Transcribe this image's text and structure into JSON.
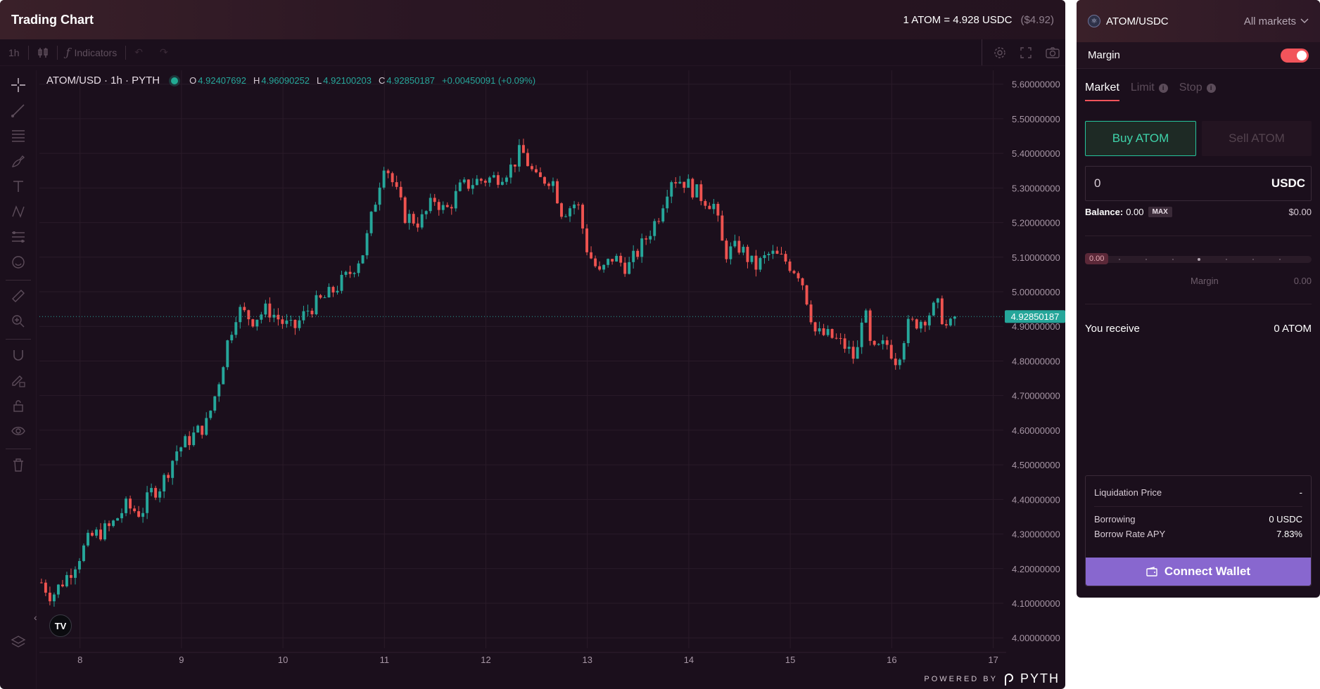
{
  "chart_header": {
    "title": "Trading Chart",
    "rate_text": "1 ATOM = 4.928 USDC",
    "usd_text": "($4.92)"
  },
  "toolbar": {
    "interval": "1h",
    "indicators_label": "Indicators"
  },
  "legend": {
    "symbol": "ATOM/USD · 1h · PYTH",
    "open_key": "O",
    "open": "4.92407692",
    "high_key": "H",
    "high": "4.96090252",
    "low_key": "L",
    "low": "4.92100203",
    "close_key": "C",
    "close": "4.92850187",
    "change": "+0.00450091 (+0.09%)"
  },
  "chart_data": {
    "type": "candlestick",
    "title": "ATOM/USD · 1h · PYTH",
    "xlabel": "",
    "ylabel": "",
    "x_ticks": [
      "8",
      "9",
      "10",
      "11",
      "12",
      "13",
      "14",
      "15",
      "16",
      "17"
    ],
    "y_ticks": [
      "5.60000000",
      "5.50000000",
      "5.40000000",
      "5.30000000",
      "5.20000000",
      "5.10000000",
      "5.00000000",
      "4.90000000",
      "4.80000000",
      "4.70000000",
      "4.60000000",
      "4.50000000",
      "4.40000000",
      "4.30000000",
      "4.20000000",
      "4.10000000",
      "4.00000000"
    ],
    "ylim": [
      3.97,
      5.64
    ],
    "xlim": [
      7.6,
      17.1
    ],
    "last_price": 4.9285,
    "last_price_label": "4.92850187",
    "up_color": "#26a69a",
    "down_color": "#ef5350",
    "close_path": [
      [
        7.62,
        4.16
      ],
      [
        7.72,
        4.12
      ],
      [
        7.9,
        4.19
      ],
      [
        8.1,
        4.29
      ],
      [
        8.3,
        4.32
      ],
      [
        8.45,
        4.38
      ],
      [
        8.6,
        4.36
      ],
      [
        8.7,
        4.42
      ],
      [
        8.8,
        4.44
      ],
      [
        8.95,
        4.54
      ],
      [
        9.1,
        4.58
      ],
      [
        9.25,
        4.62
      ],
      [
        9.35,
        4.72
      ],
      [
        9.45,
        4.85
      ],
      [
        9.55,
        4.95
      ],
      [
        9.7,
        4.92
      ],
      [
        9.85,
        4.95
      ],
      [
        10.0,
        4.91
      ],
      [
        10.1,
        4.89
      ],
      [
        10.25,
        4.95
      ],
      [
        10.45,
        4.99
      ],
      [
        10.65,
        5.05
      ],
      [
        10.8,
        5.12
      ],
      [
        10.9,
        5.25
      ],
      [
        11.0,
        5.38
      ],
      [
        11.1,
        5.3
      ],
      [
        11.2,
        5.22
      ],
      [
        11.35,
        5.2
      ],
      [
        11.5,
        5.27
      ],
      [
        11.6,
        5.23
      ],
      [
        11.75,
        5.3
      ],
      [
        11.9,
        5.32
      ],
      [
        12.1,
        5.33
      ],
      [
        12.25,
        5.36
      ],
      [
        12.35,
        5.41
      ],
      [
        12.5,
        5.32
      ],
      [
        12.65,
        5.33
      ],
      [
        12.75,
        5.23
      ],
      [
        12.9,
        5.26
      ],
      [
        13.0,
        5.12
      ],
      [
        13.12,
        5.05
      ],
      [
        13.25,
        5.1
      ],
      [
        13.4,
        5.07
      ],
      [
        13.55,
        5.14
      ],
      [
        13.7,
        5.22
      ],
      [
        13.82,
        5.33
      ],
      [
        13.95,
        5.32
      ],
      [
        14.1,
        5.28
      ],
      [
        14.25,
        5.25
      ],
      [
        14.35,
        5.11
      ],
      [
        14.5,
        5.13
      ],
      [
        14.65,
        5.07
      ],
      [
        14.8,
        5.11
      ],
      [
        14.95,
        5.09
      ],
      [
        15.1,
        5.05
      ],
      [
        15.25,
        4.88
      ],
      [
        15.4,
        4.87
      ],
      [
        15.55,
        4.84
      ],
      [
        15.65,
        4.8
      ],
      [
        15.72,
        4.97
      ],
      [
        15.8,
        4.82
      ],
      [
        15.95,
        4.85
      ],
      [
        16.05,
        4.8
      ],
      [
        16.15,
        4.9
      ],
      [
        16.3,
        4.92
      ],
      [
        16.45,
        4.96
      ],
      [
        16.55,
        4.89
      ],
      [
        16.65,
        4.9285
      ]
    ]
  },
  "pyth_badge": {
    "powered": "POWERED BY",
    "name": "PYTH"
  },
  "trade": {
    "market": "ATOM/USDC",
    "all_markets": "All markets",
    "margin_label": "Margin",
    "tabs": {
      "market": "Market",
      "limit": "Limit",
      "stop": "Stop"
    },
    "buy_label": "Buy ATOM",
    "sell_label": "Sell ATOM",
    "amount_value": "0",
    "amount_unit": "USDC",
    "balance_label": "Balance:",
    "balance_value": "0.00",
    "max_label": "MAX",
    "balance_usd": "$0.00",
    "slider_value": "0.00",
    "slider_label": "Margin",
    "slider_right": "0.00",
    "receive_label": "You receive",
    "receive_value": "0 ATOM",
    "liq_label": "Liquidation Price",
    "liq_value": "-",
    "borrow_label": "Borrowing",
    "borrow_value": "0 USDC",
    "apy_label": "Borrow Rate APY",
    "apy_value": "7.83%",
    "connect_label": "Connect Wallet"
  }
}
